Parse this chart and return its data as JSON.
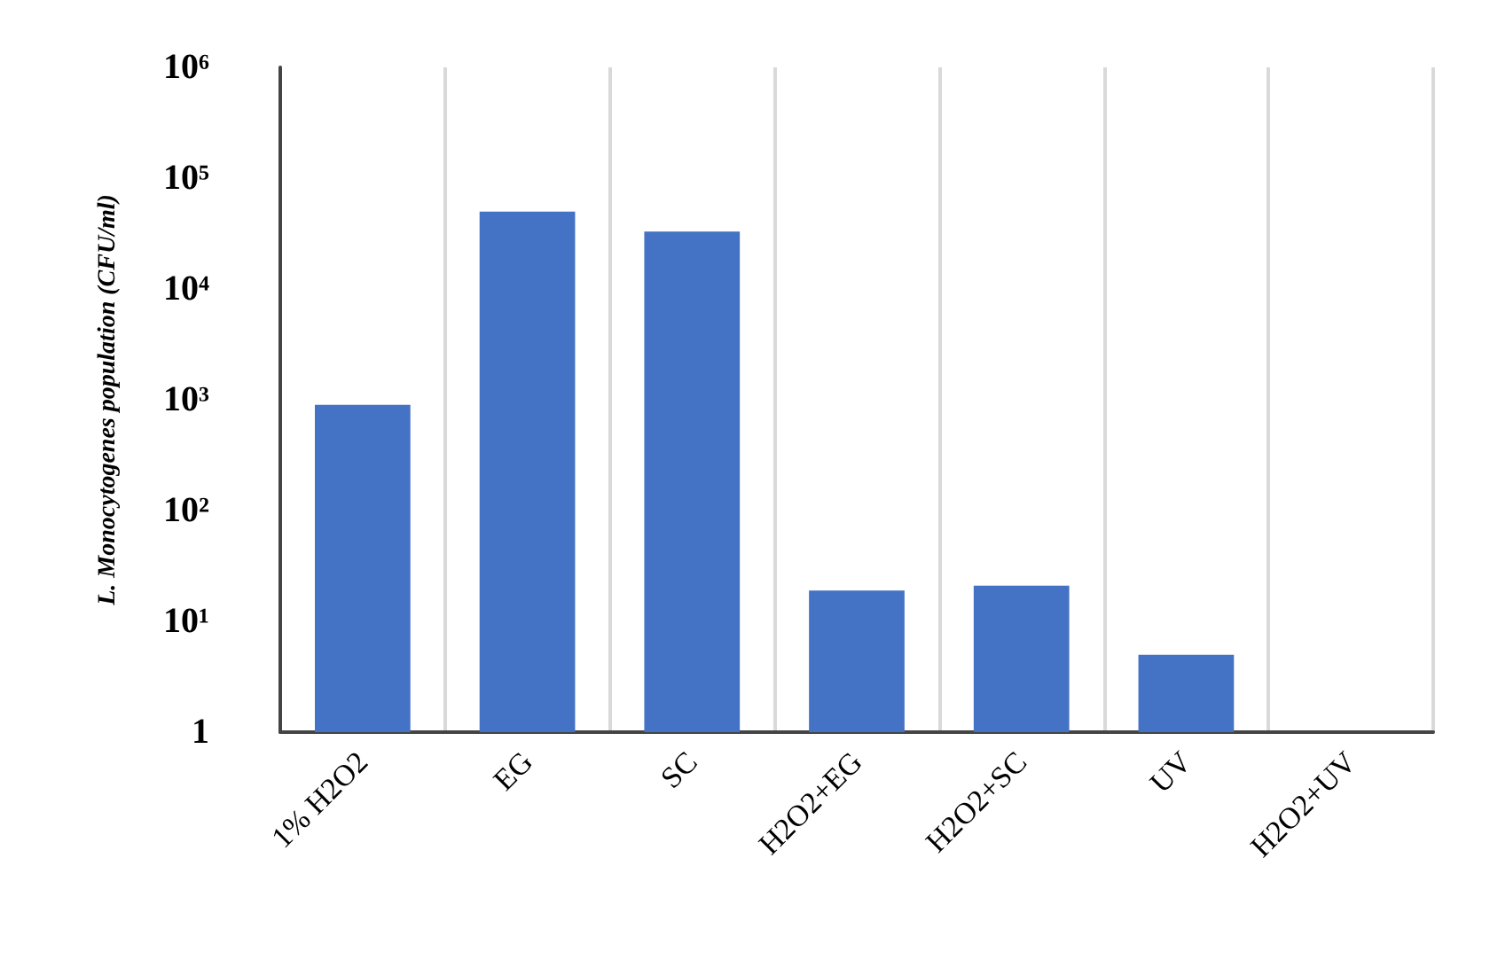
{
  "chart_data": {
    "type": "bar",
    "ylabel": "L. Monocytogenes population (CFU/ml)",
    "categories": [
      "1% H2O2",
      "EG",
      "SC",
      "H2O2+EG",
      "H2O2+SC",
      "UV",
      "H2O2+UV"
    ],
    "values": [
      900,
      50000,
      33000,
      19,
      21,
      5,
      null
    ],
    "color": "#4472c4",
    "log": true,
    "ylim": [
      1,
      1000000
    ],
    "yticks": [
      1,
      {
        "value": 10,
        "label": "10¹"
      },
      {
        "value": 100,
        "label": "10²"
      },
      {
        "value": 1000,
        "label": "10³"
      },
      {
        "value": 10000,
        "label": "10⁴"
      },
      {
        "value": 100000,
        "label": "10⁵"
      },
      {
        "value": 1000000,
        "label": "10⁶"
      }
    ],
    "grid": "x"
  }
}
